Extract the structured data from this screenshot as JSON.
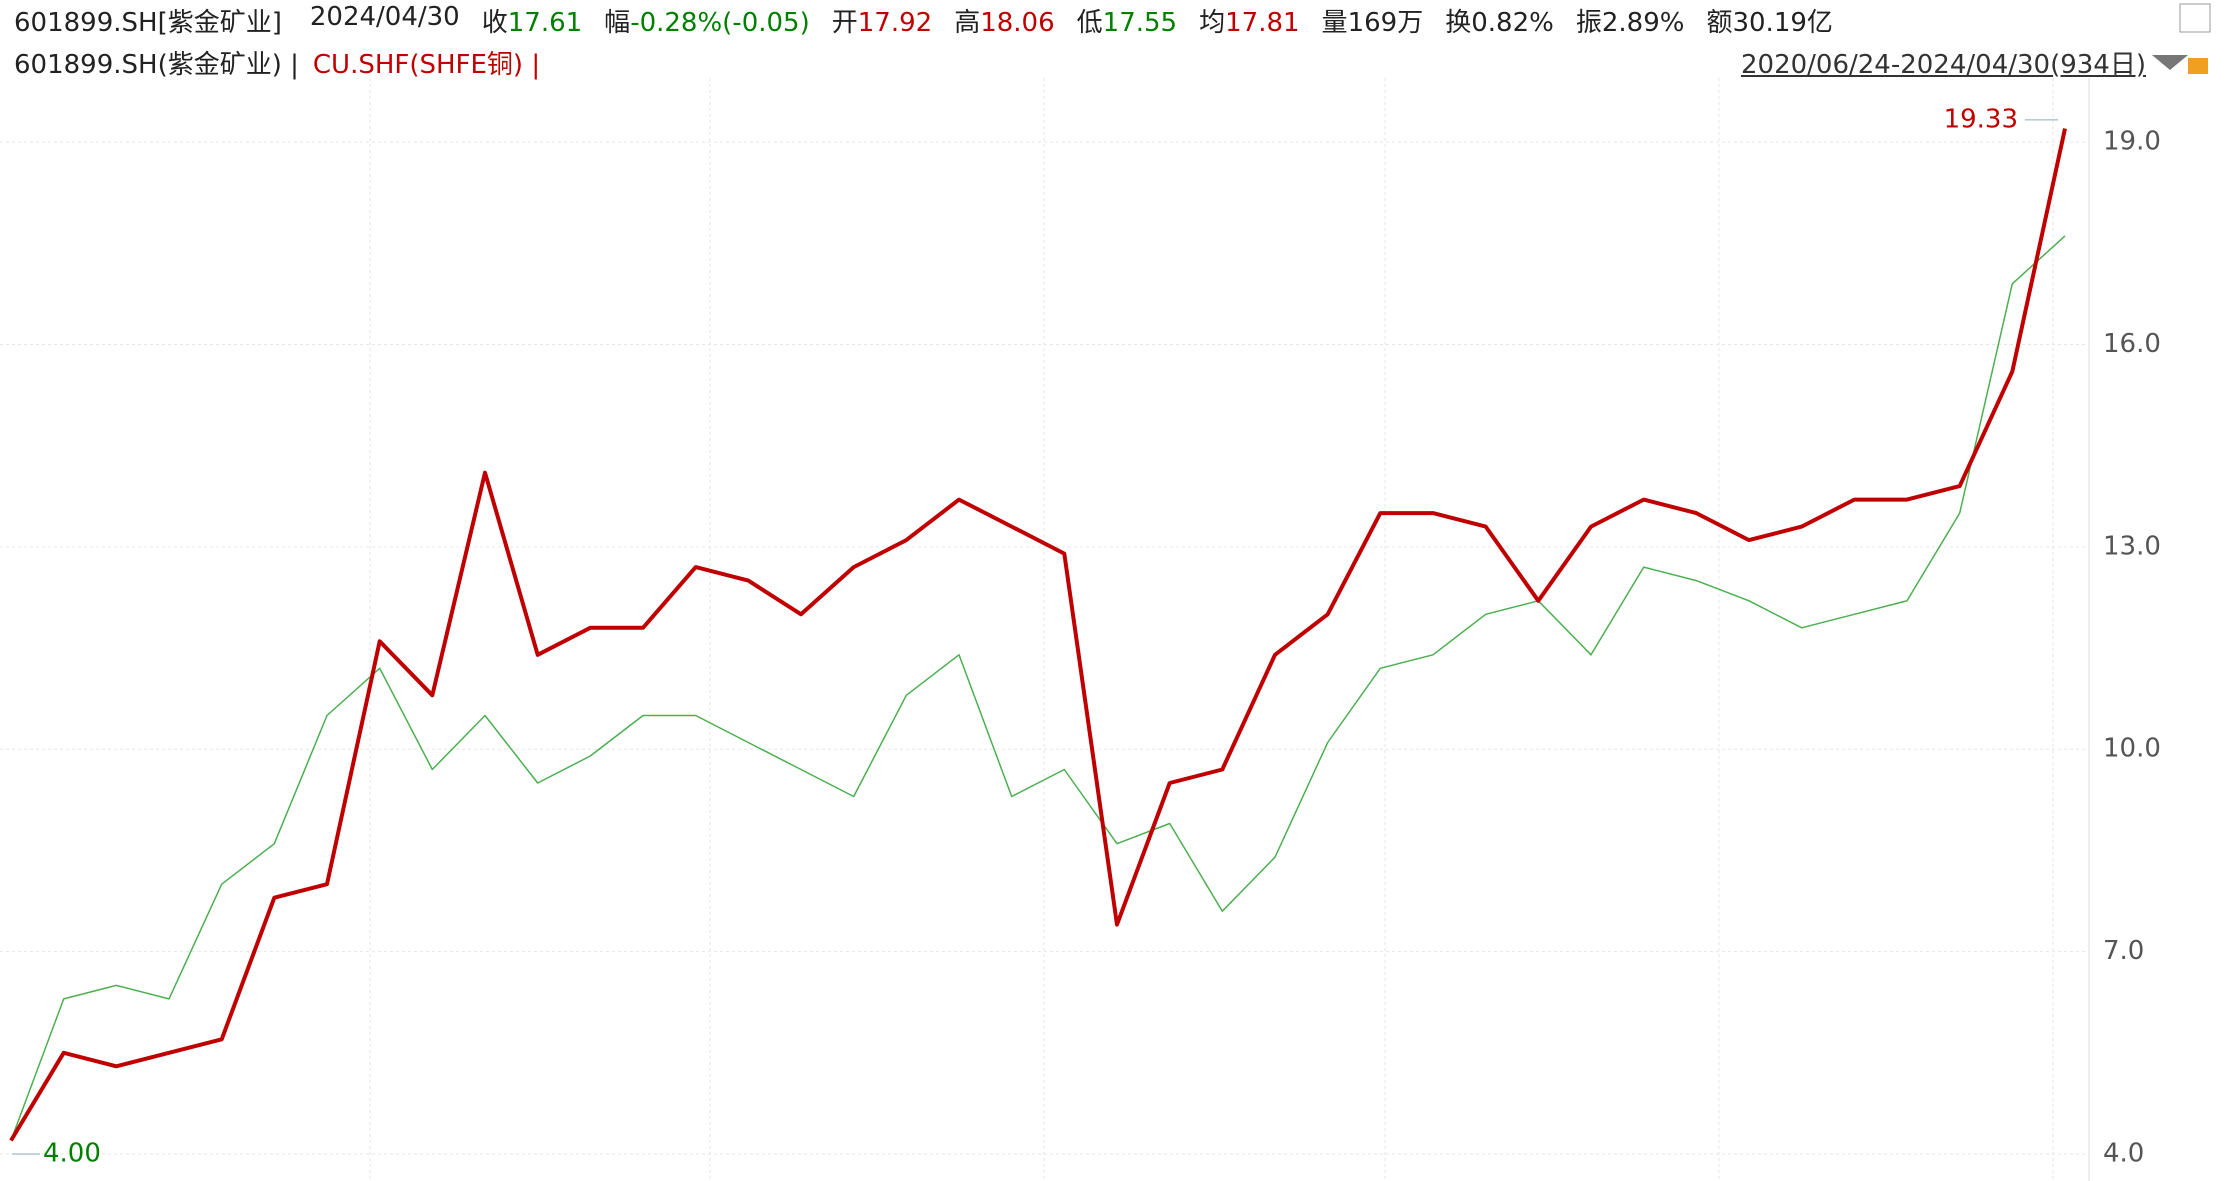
{
  "header": {
    "symbol": "601899.SH[紫金矿业]",
    "date": "2024/04/30",
    "fields": [
      {
        "label": "收",
        "value": "17.61",
        "color": "#008000"
      },
      {
        "label": "幅",
        "value": "-0.28%(-0.05)",
        "color": "#008000"
      },
      {
        "label": "开",
        "value": "17.92",
        "color": "#c00000"
      },
      {
        "label": "高",
        "value": "18.06",
        "color": "#c00000"
      },
      {
        "label": "低",
        "value": "17.55",
        "color": "#008000"
      },
      {
        "label": "均",
        "value": "17.81",
        "color": "#c00000"
      },
      {
        "label": "量",
        "value": "169万",
        "color": "#222222"
      },
      {
        "label": "换",
        "value": "0.82%",
        "color": "#222222"
      },
      {
        "label": "振",
        "value": "2.89%",
        "color": "#222222"
      },
      {
        "label": "额",
        "value": "30.19亿",
        "color": "#222222"
      }
    ],
    "legend_main": "601899.SH(紫金矿业) |",
    "legend_overlay": "CU.SHF(SHFE铜) |",
    "range": "2020/06/24-2024/04/30(934日)"
  },
  "chart_data": {
    "type": "line",
    "series": [
      {
        "name": "601899.SH(紫金矿业)",
        "color": "#4caf50",
        "width": 1.5,
        "values": [
          4.2,
          6.3,
          6.5,
          6.3,
          8.0,
          8.6,
          10.5,
          11.2,
          9.7,
          10.5,
          9.5,
          9.9,
          10.5,
          10.5,
          10.1,
          9.7,
          9.3,
          10.8,
          11.4,
          9.3,
          9.7,
          8.6,
          8.9,
          7.6,
          8.4,
          10.1,
          11.2,
          11.4,
          12.0,
          12.2,
          11.4,
          12.7,
          12.5,
          12.2,
          11.8,
          12.0,
          12.2,
          13.5,
          16.9,
          17.61
        ]
      },
      {
        "name": "CU.SHF(SHFE铜)",
        "color": "#c00000",
        "width": 4,
        "values": [
          4.2,
          5.5,
          5.3,
          5.5,
          5.7,
          7.8,
          8.0,
          11.6,
          10.8,
          14.1,
          11.4,
          11.8,
          11.8,
          12.7,
          12.5,
          12.0,
          12.7,
          13.1,
          13.7,
          13.3,
          12.9,
          7.4,
          9.5,
          9.7,
          11.4,
          12.0,
          13.5,
          13.5,
          13.3,
          12.2,
          13.3,
          13.7,
          13.5,
          13.1,
          13.3,
          13.7,
          13.7,
          13.9,
          15.6,
          19.2
        ]
      }
    ],
    "ylim": [
      3.6,
      19.95
    ],
    "yticks": [
      {
        "value": 4,
        "label": "4.0"
      },
      {
        "value": 7,
        "label": "7.0"
      },
      {
        "value": 10,
        "label": "10.0"
      },
      {
        "value": 13,
        "label": "13.0"
      },
      {
        "value": 16,
        "label": "16.0"
      },
      {
        "value": 19,
        "label": "19.0"
      }
    ],
    "grid": true,
    "annotations": [
      {
        "text": "19.33",
        "value": 19.33,
        "color": "#c00000"
      },
      {
        "text": "4.00",
        "value": 4.0,
        "color": "#008000"
      }
    ]
  }
}
